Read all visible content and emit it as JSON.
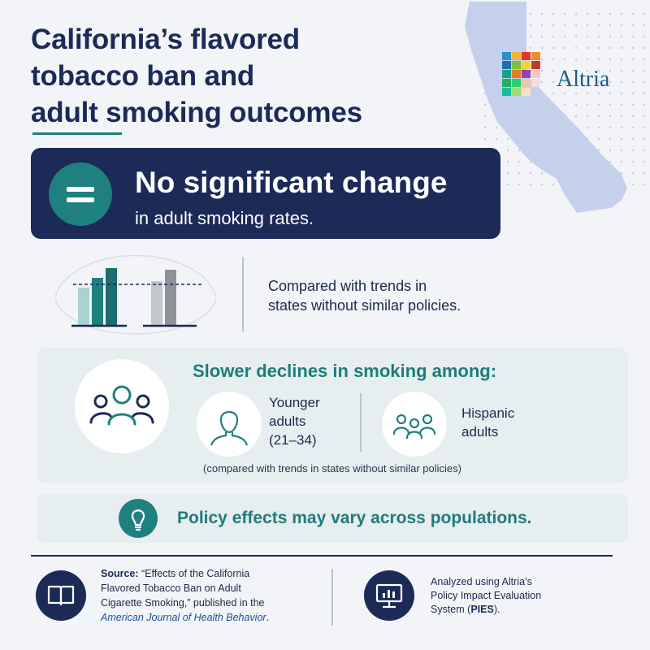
{
  "title": {
    "line1": "California’s flavored",
    "line2": "tobacco ban and",
    "line3": "adult smoking outcomes"
  },
  "logo": {
    "text": "Altria"
  },
  "headline": {
    "main": "No significant change",
    "sub": "in adult smoking rates."
  },
  "comparison": {
    "text_line1": "Compared with trends in",
    "text_line2": "states without similar policies."
  },
  "slower_declines": {
    "title": "Slower declines in smoking among:",
    "younger": {
      "line1": "Younger",
      "line2": "adults",
      "line3": "(21–34)"
    },
    "hispanic": {
      "line1": "Hispanic",
      "line2": "adults"
    },
    "note": "(compared with trends in states without similar policies)"
  },
  "policy_note": "Policy effects may vary across populations.",
  "source": {
    "label": "Source:",
    "text_line1": "“Effects of the California",
    "text_line2": "Flavored Tobacco Ban on Adult",
    "text_line3": "Cigarette Smoking,” published in the",
    "journal": "American Journal of Health Behavior",
    "end": "."
  },
  "analysis": {
    "line1": "Analyzed using Altria’s",
    "line2": "Policy Impact Evaluation",
    "line3_pre": "System (",
    "acronym": "PIES",
    "line3_post": ")."
  },
  "icons": {
    "equals": "equals-icon",
    "bar_chart": "bar-chart-icon",
    "group": "group-icon",
    "person": "person-icon",
    "people": "people-icon",
    "lightbulb": "lightbulb-icon",
    "book": "book-icon",
    "monitor_chart": "monitor-chart-icon",
    "map": "california-map"
  },
  "colors": {
    "navy": "#1b2a57",
    "teal": "#1f7c7c",
    "panel": "#e6eef0",
    "map": "#c5d1ec"
  }
}
